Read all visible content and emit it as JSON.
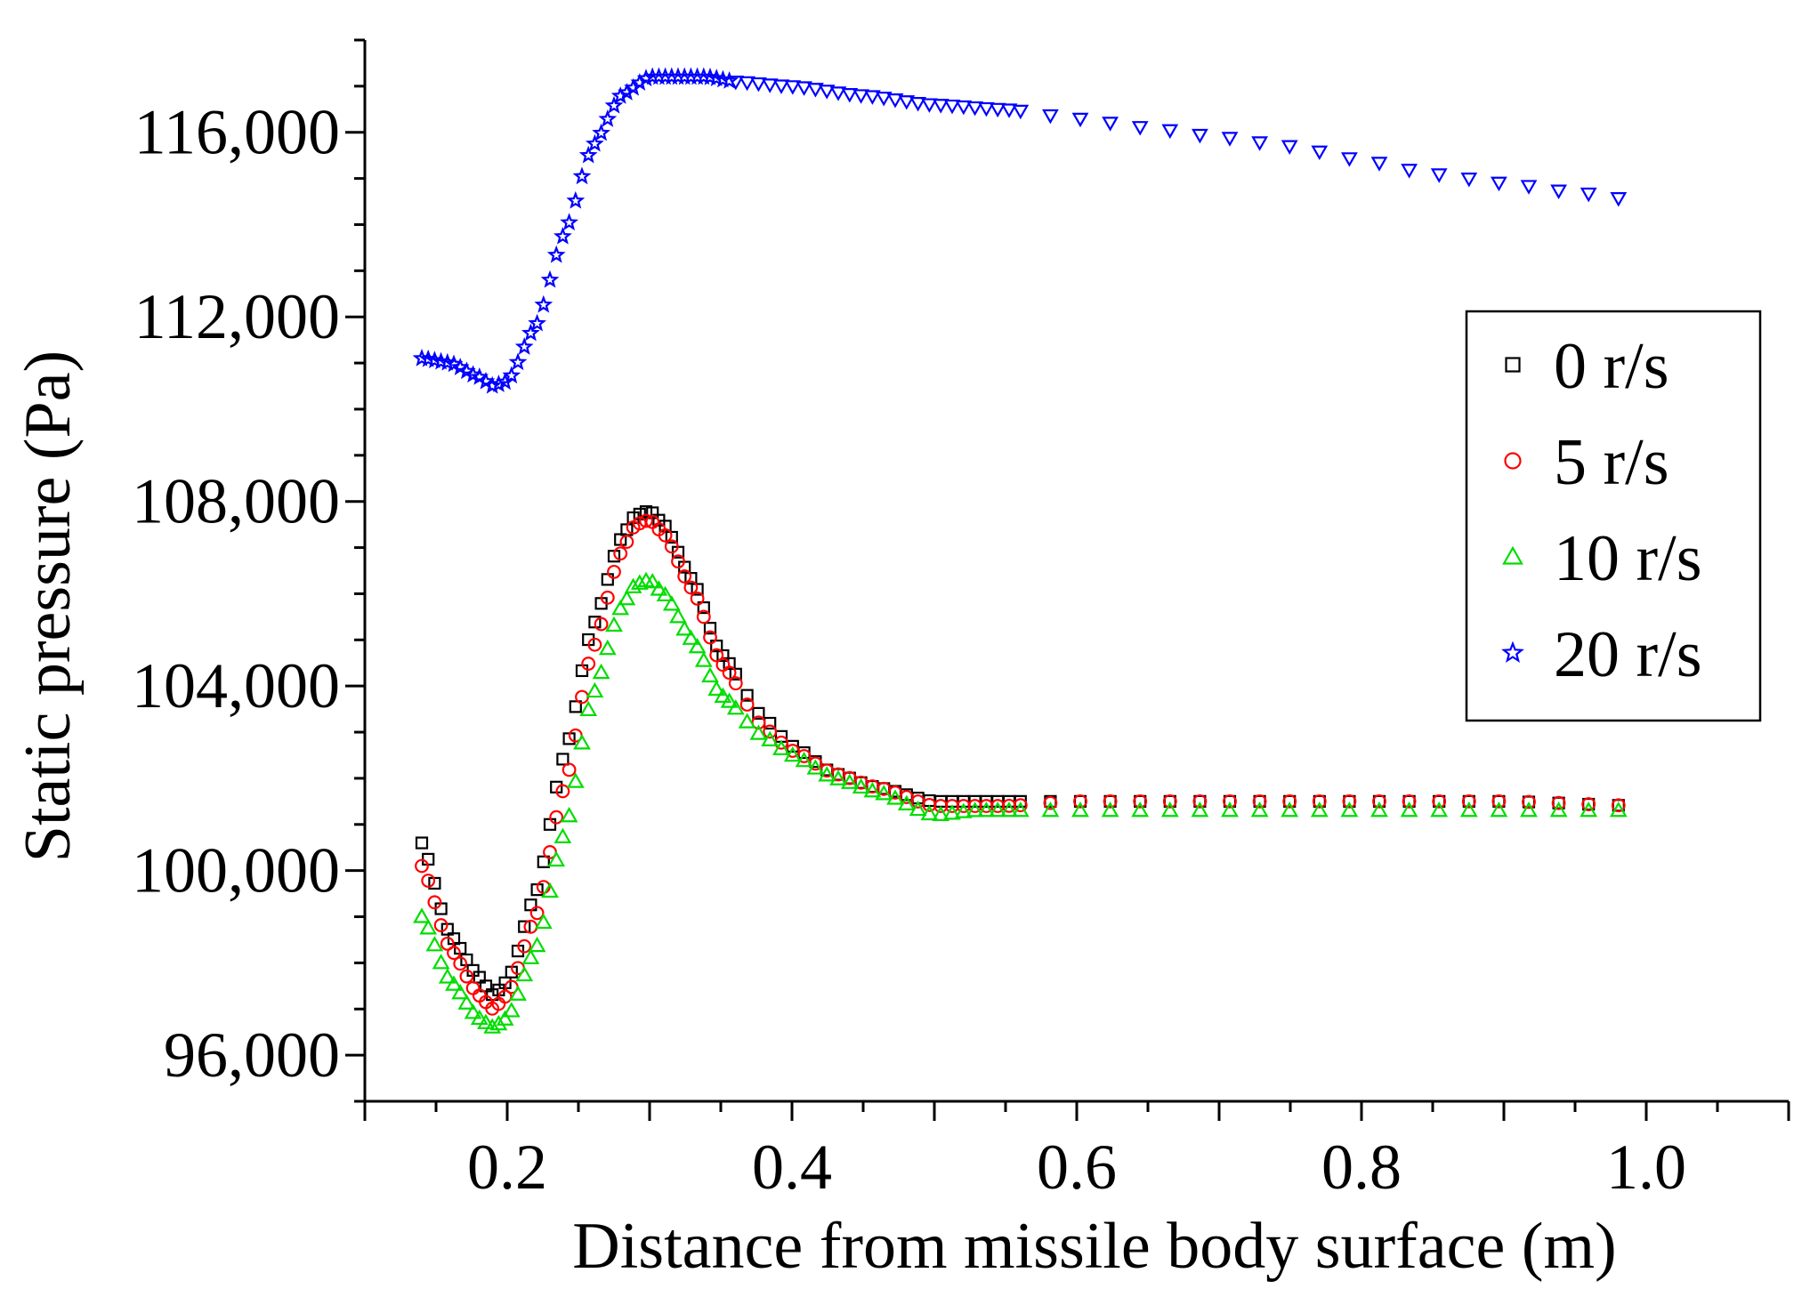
{
  "chart_data": {
    "type": "scatter",
    "title": "",
    "xlabel": "Distance from missile body surface (m)",
    "ylabel": "Static pressure (Pa)",
    "xlim": [
      0.1,
      1.1
    ],
    "ylim": [
      95000,
      118000
    ],
    "x_ticks": [
      0.2,
      0.4,
      0.6,
      0.8,
      1.0
    ],
    "x_tick_labels": [
      "0.2",
      "0.4",
      "0.6",
      "0.8",
      "1.0"
    ],
    "y_ticks": [
      96000,
      100000,
      104000,
      108000,
      112000,
      116000
    ],
    "y_tick_labels": [
      "96,000",
      "100,000",
      "104,000",
      "108,000",
      "112,000",
      "116,000"
    ],
    "grid": false,
    "legend_position": "right",
    "series": [
      {
        "name": "0 r/s",
        "marker": "square",
        "color": "#000000",
        "x": [
          0.14,
          0.16,
          0.18,
          0.19,
          0.2,
          0.22,
          0.24,
          0.26,
          0.28,
          0.29,
          0.3,
          0.31,
          0.33,
          0.35,
          0.38,
          0.4,
          0.43,
          0.46,
          0.5,
          0.53,
          0.55,
          0.6,
          0.7,
          0.8,
          0.9,
          1.0
        ],
        "y": [
          100600,
          98600,
          97700,
          97300,
          97600,
          99500,
          102500,
          105300,
          107200,
          107700,
          107800,
          107500,
          106300,
          104700,
          103300,
          102700,
          102100,
          101800,
          101500,
          101500,
          101500,
          101500,
          101500,
          101500,
          101500,
          101400
        ]
      },
      {
        "name": "5 r/s",
        "marker": "circle",
        "color": "#ff0000",
        "x": [
          0.14,
          0.16,
          0.18,
          0.19,
          0.2,
          0.22,
          0.24,
          0.26,
          0.28,
          0.29,
          0.3,
          0.31,
          0.33,
          0.35,
          0.38,
          0.4,
          0.43,
          0.46,
          0.5,
          0.53,
          0.55,
          0.6,
          0.7,
          0.8,
          0.9,
          1.0
        ],
        "y": [
          100100,
          98300,
          97300,
          97000,
          97300,
          99000,
          101800,
          104800,
          106900,
          107500,
          107600,
          107300,
          106100,
          104500,
          103100,
          102600,
          102100,
          101800,
          101400,
          101400,
          101400,
          101500,
          101500,
          101500,
          101500,
          101400
        ]
      },
      {
        "name": "10 r/s",
        "marker": "triangle-up",
        "color": "#00dd00",
        "x": [
          0.14,
          0.16,
          0.18,
          0.19,
          0.2,
          0.22,
          0.24,
          0.26,
          0.28,
          0.29,
          0.3,
          0.31,
          0.33,
          0.35,
          0.38,
          0.4,
          0.43,
          0.46,
          0.5,
          0.53,
          0.55,
          0.6,
          0.7,
          0.8,
          0.9,
          1.0
        ],
        "y": [
          99000,
          97600,
          96800,
          96600,
          96800,
          98300,
          100800,
          103800,
          105700,
          106200,
          106300,
          106000,
          105000,
          103800,
          102900,
          102500,
          102000,
          101700,
          101200,
          101300,
          101300,
          101300,
          101300,
          101300,
          101300,
          101300
        ]
      },
      {
        "name": "20 r/s",
        "marker": "star",
        "color": "#0000ff",
        "x": [
          0.14,
          0.16,
          0.18,
          0.19,
          0.2,
          0.22,
          0.24,
          0.26,
          0.28,
          0.3,
          0.32,
          0.34,
          0.36,
          0.4,
          0.45,
          0.5,
          0.55,
          0.6,
          0.65,
          0.7,
          0.75,
          0.8,
          0.85,
          0.9,
          0.95,
          1.0
        ],
        "y": [
          111100,
          111000,
          110700,
          110500,
          110600,
          111800,
          113800,
          115700,
          116800,
          117200,
          117200,
          117200,
          117100,
          117000,
          116800,
          116600,
          116500,
          116300,
          116100,
          115900,
          115700,
          115400,
          115100,
          114900,
          114700,
          114500
        ]
      }
    ]
  }
}
